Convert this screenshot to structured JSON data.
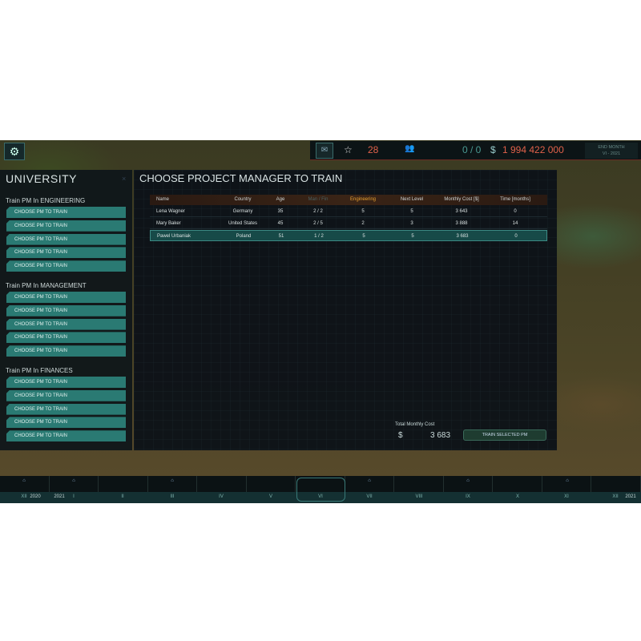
{
  "hud": {
    "stars": "28",
    "people": "0 / 0",
    "currency": "$",
    "money": "1 994 422 000",
    "end_month_label": "END MONTH",
    "end_month_value": "VI - 2021"
  },
  "left_panel": {
    "title": "UNIVERSITY",
    "sections": [
      {
        "title": "Train PM In ENGINEERING",
        "buttons": [
          "CHOOSE PM TO TRAIN",
          "CHOOSE PM TO TRAIN",
          "CHOOSE PM TO TRAIN",
          "CHOOSE PM TO TRAIN",
          "CHOOSE PM TO TRAIN"
        ]
      },
      {
        "title": "Train PM In MANAGEMENT",
        "buttons": [
          "CHOOSE PM TO TRAIN",
          "CHOOSE PM TO TRAIN",
          "CHOOSE PM TO TRAIN",
          "CHOOSE PM TO TRAIN",
          "CHOOSE PM TO TRAIN"
        ]
      },
      {
        "title": "Train PM In FINANCES",
        "buttons": [
          "CHOOSE PM TO TRAIN",
          "CHOOSE PM TO TRAIN",
          "CHOOSE PM TO TRAIN",
          "CHOOSE PM TO TRAIN",
          "CHOOSE PM TO TRAIN"
        ]
      }
    ]
  },
  "main": {
    "title": "CHOOSE PROJECT MANAGER TO TRAIN",
    "columns": [
      "Name",
      "Country",
      "Age",
      "Man / Fin",
      "Engineering",
      "Next Level",
      "Monthly Cost [$]",
      "Time [months]"
    ],
    "rows": [
      [
        "Lena Wagner",
        "Germany",
        "35",
        "2 / 2",
        "5",
        "5",
        "3 643",
        "0"
      ],
      [
        "Mary Baker",
        "United States",
        "45",
        "2 / 5",
        "2",
        "3",
        "3 888",
        "14"
      ],
      [
        "Pawel Urbaniak",
        "Poland",
        "51",
        "1 / 2",
        "5",
        "5",
        "3 683",
        "0"
      ]
    ],
    "selected_row": 2,
    "total_label": "Total Monthly Cost",
    "total_currency": "$",
    "total_value": "3 683",
    "train_button": "TRAIN SELECTED PM"
  },
  "timeline": {
    "labels": [
      "XII",
      "2020",
      "2021",
      "I",
      "II",
      "III",
      "IV",
      "V",
      "VI",
      "VII",
      "VIII",
      "IX",
      "X",
      "XI",
      "XII",
      "2021"
    ],
    "current": "VI"
  },
  "colors": {
    "accent": "#2a7a73",
    "money": "#e0614a",
    "highlight": "#e8a030"
  }
}
